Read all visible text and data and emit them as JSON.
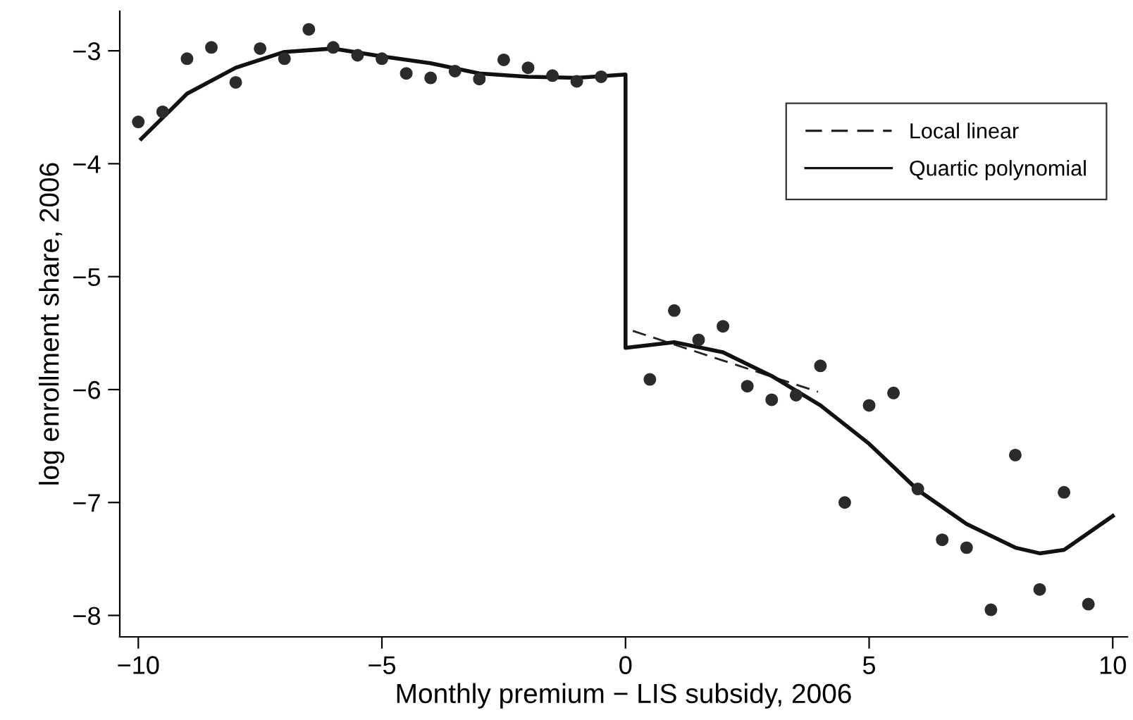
{
  "chart_data": {
    "type": "scatter",
    "xlabel": "Monthly premium − LIS subsidy, 2006",
    "ylabel": "log enrollment share, 2006",
    "xlim": [
      -10.38,
      10.3
    ],
    "ylim": [
      -8.19,
      -2.65
    ],
    "xticks": [
      {
        "value": -10,
        "label": "−10"
      },
      {
        "value": -5,
        "label": "−5"
      },
      0,
      5,
      10
    ],
    "yticks": [
      {
        "value": -8,
        "label": "−8"
      },
      {
        "value": -7,
        "label": "−7"
      },
      {
        "value": -6,
        "label": "−6"
      },
      {
        "value": -5,
        "label": "−5"
      },
      {
        "value": -4,
        "label": "−4"
      },
      {
        "value": -3,
        "label": "−3"
      }
    ],
    "grid": false,
    "legend": "top right",
    "series": [
      {
        "color": "#2b2b2b",
        "marker": "circle",
        "x": [
          -10,
          -9.5,
          -9,
          -8.5,
          -8,
          -7.5,
          -7,
          -6.5,
          -6,
          -5.5,
          -5,
          -4.5,
          -4,
          -3.5,
          -3,
          -2.5,
          -2,
          -1.5,
          -1,
          -0.5,
          0.5,
          1,
          1.5,
          2,
          2.5,
          3,
          3.5,
          4,
          4.5,
          5,
          5.5,
          6,
          6.5,
          7,
          7.5,
          8,
          8.5,
          9,
          9.5
        ],
        "values": [
          -3.63,
          -3.54,
          -3.07,
          -2.97,
          -3.28,
          -2.98,
          -3.07,
          -2.81,
          -2.97,
          -3.04,
          -3.07,
          -3.2,
          -3.24,
          -3.18,
          -3.25,
          -3.08,
          -3.15,
          -3.22,
          -3.27,
          -3.23,
          -5.91,
          -5.3,
          -5.56,
          -5.44,
          -5.97,
          -6.09,
          -6.05,
          -5.79,
          -7.0,
          -6.14,
          -6.03,
          -6.88,
          -7.33,
          -7.4,
          -7.95,
          -6.58,
          -7.77,
          -6.91,
          -7.9
        ]
      },
      {
        "type": "line",
        "name": "Local linear",
        "color": "#222222",
        "line_style": "dashed",
        "marker": "none",
        "x": [
          0.15,
          3.95
        ],
        "values": [
          -5.48,
          -6.02
        ]
      },
      {
        "type": "line",
        "name": "Quartic polynomial",
        "color": "#111111",
        "line_style": "solid",
        "marker": "none",
        "x": [
          -9.94,
          -9,
          -8,
          -7,
          -6,
          -5,
          -4,
          -3,
          -2,
          -1,
          0,
          0,
          1,
          2,
          3,
          4,
          5,
          6,
          7,
          8,
          8.5,
          9,
          10
        ],
        "values": [
          -3.78,
          -3.38,
          -3.15,
          -3.01,
          -2.98,
          -3.05,
          -3.11,
          -3.2,
          -3.23,
          -3.24,
          -3.21,
          -5.63,
          -5.58,
          -5.67,
          -5.88,
          -6.14,
          -6.48,
          -6.89,
          -7.19,
          -7.4,
          -7.45,
          -7.42,
          -7.12
        ]
      }
    ]
  }
}
